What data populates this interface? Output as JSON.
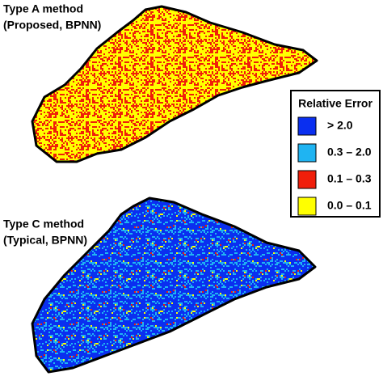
{
  "panels": [
    {
      "title": "Type A method",
      "subtitle": "(Proposed, BPNN)"
    },
    {
      "title": "Type C method",
      "subtitle": "(Typical, BPNN)"
    }
  ],
  "legend": {
    "title": "Relative Error",
    "items": [
      {
        "label": "> 2.0",
        "color": "#0a2ff0"
      },
      {
        "label": "0.3 – 2.0",
        "color": "#1fb4f2"
      },
      {
        "label": "0.1 – 0.3",
        "color": "#f01e0a"
      },
      {
        "label": "0.0 – 0.1",
        "color": "#ffff00"
      }
    ]
  }
}
